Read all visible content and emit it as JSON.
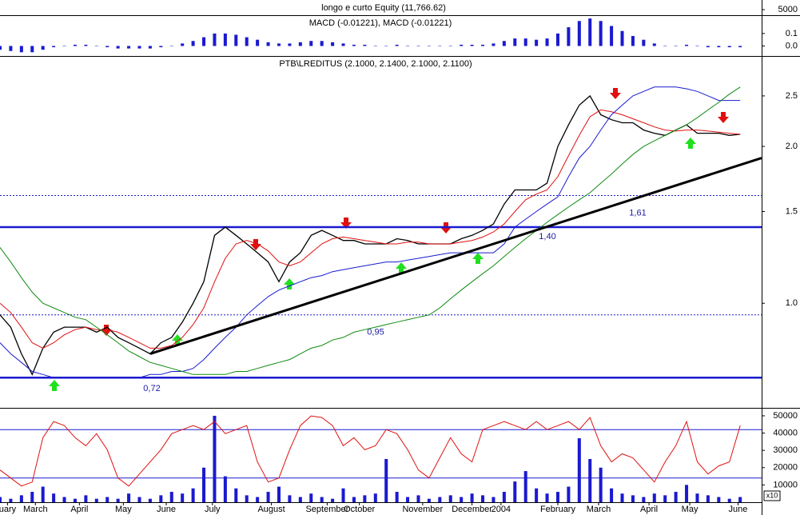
{
  "chart_data": [
    {
      "type": "equity",
      "title": "longo e curto Equity (11,766.62)",
      "ylim": [
        3000,
        7000
      ],
      "yticks": [
        5000
      ]
    },
    {
      "type": "bar",
      "title": "MACD (-0.01221), MACD (-0.01221)",
      "color": "#1a1ad0",
      "x": [
        0,
        1,
        2,
        3,
        4,
        5,
        6,
        7,
        8,
        9,
        10,
        11,
        12,
        13,
        14,
        15,
        16,
        17,
        18,
        19,
        20,
        21,
        22,
        23,
        24,
        25,
        26,
        27,
        28,
        29,
        30,
        31,
        32,
        33,
        34,
        35,
        36,
        37,
        38,
        39,
        40,
        41,
        42,
        43,
        44,
        45,
        46,
        47,
        48,
        49,
        50,
        51,
        52,
        53,
        54,
        55,
        56,
        57,
        58,
        59,
        60,
        61,
        62,
        63,
        64,
        65,
        66,
        67,
        68,
        69
      ],
      "values": [
        -0.03,
        -0.04,
        -0.05,
        -0.05,
        -0.03,
        -0.01,
        0,
        0.01,
        0.01,
        0,
        -0.01,
        -0.02,
        -0.02,
        -0.02,
        -0.02,
        -0.01,
        0,
        0.02,
        0.04,
        0.07,
        0.1,
        0.1,
        0.09,
        0.07,
        0.05,
        0.03,
        0.02,
        0.02,
        0.03,
        0.04,
        0.04,
        0.03,
        0.02,
        0.01,
        0.01,
        0,
        0,
        0.01,
        0,
        0,
        0,
        0,
        0,
        0.01,
        0.01,
        0.01,
        0.02,
        0.04,
        0.06,
        0.06,
        0.05,
        0.06,
        0.1,
        0.15,
        0.2,
        0.22,
        0.2,
        0.16,
        0.12,
        0.08,
        0.05,
        0.02,
        0,
        0,
        0.01,
        0,
        -0.01,
        -0.01,
        -0.01,
        -0.01
      ],
      "xlim": [
        0,
        71
      ],
      "ylim": [
        -0.08,
        0.24
      ],
      "yticks": [
        0.1,
        {
          "value": 0,
          "label": "0.0"
        }
      ]
    },
    {
      "type": "line",
      "title": "PTB\\LREDITUS (2.1000, 2.1400, 2.1000, 2.1100)",
      "log": true,
      "x": [
        0,
        1,
        2,
        3,
        4,
        5,
        6,
        7,
        8,
        9,
        10,
        11,
        12,
        13,
        14,
        15,
        16,
        17,
        18,
        19,
        20,
        21,
        22,
        23,
        24,
        25,
        26,
        27,
        28,
        29,
        30,
        31,
        32,
        33,
        34,
        35,
        36,
        37,
        38,
        39,
        40,
        41,
        42,
        43,
        44,
        45,
        46,
        47,
        48,
        49,
        50,
        51,
        52,
        53,
        54,
        55,
        56,
        57,
        58,
        59,
        60,
        61,
        62,
        63,
        64,
        65,
        66,
        67,
        68,
        69
      ],
      "series": [
        {
          "color": "#000000",
          "values": [
            0.95,
            0.9,
            0.8,
            0.73,
            0.82,
            0.88,
            0.9,
            0.9,
            0.9,
            0.88,
            0.9,
            0.86,
            0.84,
            0.82,
            0.8,
            0.84,
            0.86,
            0.92,
            1.0,
            1.1,
            1.35,
            1.4,
            1.35,
            1.3,
            1.25,
            1.2,
            1.1,
            1.2,
            1.25,
            1.35,
            1.38,
            1.35,
            1.32,
            1.32,
            1.3,
            1.3,
            1.3,
            1.33,
            1.32,
            1.3,
            1.3,
            1.3,
            1.3,
            1.33,
            1.35,
            1.38,
            1.42,
            1.55,
            1.65,
            1.65,
            1.65,
            1.7,
            2.0,
            2.2,
            2.4,
            2.5,
            2.3,
            2.25,
            2.22,
            2.22,
            2.15,
            2.12,
            2.1,
            2.15,
            2.2,
            2.12,
            2.12,
            2.12,
            2.1,
            2.11
          ]
        },
        {
          "color": "#e01010",
          "values": [
            1.0,
            0.96,
            0.9,
            0.84,
            0.82,
            0.84,
            0.87,
            0.89,
            0.9,
            0.89,
            0.89,
            0.88,
            0.86,
            0.84,
            0.82,
            0.82,
            0.83,
            0.86,
            0.91,
            0.98,
            1.1,
            1.22,
            1.3,
            1.32,
            1.3,
            1.26,
            1.2,
            1.18,
            1.2,
            1.25,
            1.3,
            1.33,
            1.34,
            1.33,
            1.32,
            1.31,
            1.3,
            1.3,
            1.31,
            1.31,
            1.3,
            1.3,
            1.3,
            1.31,
            1.32,
            1.34,
            1.37,
            1.42,
            1.5,
            1.58,
            1.62,
            1.65,
            1.75,
            1.92,
            2.1,
            2.28,
            2.35,
            2.33,
            2.3,
            2.26,
            2.22,
            2.18,
            2.15,
            2.14,
            2.15,
            2.15,
            2.14,
            2.13,
            2.12,
            2.11
          ]
        },
        {
          "color": "#1a1ad0",
          "values": [
            0.84,
            0.8,
            0.77,
            0.74,
            0.73,
            0.72,
            0.72,
            0.72,
            0.72,
            0.72,
            0.72,
            0.72,
            0.72,
            0.72,
            0.73,
            0.73,
            0.74,
            0.74,
            0.75,
            0.78,
            0.82,
            0.86,
            0.9,
            0.95,
            0.99,
            1.03,
            1.06,
            1.08,
            1.1,
            1.12,
            1.13,
            1.15,
            1.16,
            1.17,
            1.18,
            1.19,
            1.2,
            1.2,
            1.21,
            1.22,
            1.23,
            1.24,
            1.25,
            1.25,
            1.25,
            1.25,
            1.25,
            1.3,
            1.4,
            1.45,
            1.5,
            1.55,
            1.6,
            1.75,
            1.9,
            2.0,
            2.15,
            2.3,
            2.4,
            2.5,
            2.55,
            2.6,
            2.6,
            2.6,
            2.58,
            2.55,
            2.5,
            2.45,
            2.45,
            2.45
          ]
        },
        {
          "color": "#108a10",
          "values": [
            1.28,
            1.2,
            1.12,
            1.05,
            1.0,
            0.98,
            0.96,
            0.94,
            0.93,
            0.9,
            0.87,
            0.84,
            0.81,
            0.79,
            0.77,
            0.76,
            0.75,
            0.74,
            0.73,
            0.73,
            0.73,
            0.73,
            0.74,
            0.74,
            0.75,
            0.76,
            0.77,
            0.78,
            0.8,
            0.82,
            0.83,
            0.85,
            0.86,
            0.88,
            0.89,
            0.9,
            0.91,
            0.92,
            0.93,
            0.94,
            0.95,
            0.98,
            1.02,
            1.06,
            1.1,
            1.14,
            1.18,
            1.23,
            1.28,
            1.33,
            1.38,
            1.43,
            1.48,
            1.53,
            1.58,
            1.63,
            1.7,
            1.77,
            1.85,
            1.93,
            2.0,
            2.05,
            2.1,
            2.15,
            2.2,
            2.27,
            2.35,
            2.43,
            2.52,
            2.6
          ]
        }
      ],
      "trendline": {
        "x": [
          14,
          71
        ],
        "values": [
          0.8,
          1.9
        ]
      },
      "annotations": [
        {
          "label": "0,72",
          "value": 0.72
        },
        {
          "label": "0,95",
          "value": 0.95
        },
        {
          "label": "1,40",
          "value": 1.4
        },
        {
          "label": "1,61",
          "value": 1.61
        }
      ],
      "xlim": [
        0,
        71
      ],
      "ylim": [
        0.63,
        2.93
      ],
      "yticks": [
        2.5,
        {
          "value": 2,
          "label": "2.0"
        },
        1.5,
        {
          "value": 1,
          "label": "1.0"
        }
      ]
    },
    {
      "type": "bar",
      "color": "#1a1ad0",
      "unit_label": "x10",
      "x": [
        0,
        1,
        2,
        3,
        4,
        5,
        6,
        7,
        8,
        9,
        10,
        11,
        12,
        13,
        14,
        15,
        16,
        17,
        18,
        19,
        20,
        21,
        22,
        23,
        24,
        25,
        26,
        27,
        28,
        29,
        30,
        31,
        32,
        33,
        34,
        35,
        36,
        37,
        38,
        39,
        40,
        41,
        42,
        43,
        44,
        45,
        46,
        47,
        48,
        49,
        50,
        51,
        52,
        53,
        54,
        55,
        56,
        57,
        58,
        59,
        60,
        61,
        62,
        63,
        64,
        65,
        66,
        67,
        68,
        69
      ],
      "values": [
        3000,
        2000,
        4000,
        6000,
        9000,
        5000,
        3000,
        2000,
        4000,
        2000,
        3000,
        2000,
        5000,
        3000,
        2000,
        4000,
        6000,
        5000,
        8000,
        20000,
        50000,
        15000,
        8000,
        4000,
        3000,
        6000,
        9000,
        4000,
        3000,
        5000,
        3000,
        2000,
        8000,
        3000,
        4000,
        5000,
        25000,
        6000,
        3000,
        4000,
        2000,
        3000,
        4000,
        3000,
        5000,
        4000,
        3000,
        6000,
        12000,
        18000,
        8000,
        5000,
        6000,
        9000,
        37000,
        25000,
        20000,
        8000,
        5000,
        4000,
        3000,
        5000,
        4000,
        6000,
        10000,
        5000,
        4000,
        3000,
        2000,
        3000
      ],
      "series": [
        {
          "color": "#e01010",
          "axis": "y2",
          "values": [
            30,
            20,
            10,
            15,
            70,
            90,
            85,
            70,
            60,
            75,
            55,
            20,
            10,
            25,
            40,
            55,
            75,
            80,
            85,
            80,
            90,
            75,
            80,
            85,
            40,
            15,
            20,
            55,
            85,
            97,
            95,
            85,
            60,
            70,
            55,
            60,
            80,
            75,
            55,
            30,
            20,
            45,
            70,
            50,
            40,
            80,
            85,
            90,
            85,
            80,
            90,
            80,
            85,
            90,
            80,
            95,
            60,
            40,
            50,
            45,
            30,
            15,
            40,
            60,
            90,
            40,
            25,
            35,
            40,
            85
          ]
        }
      ],
      "levels": [
        80,
        20
      ],
      "xlim": [
        0,
        71
      ],
      "ylim": [
        0,
        54600
      ],
      "yticks": [
        50000,
        40000,
        30000,
        20000,
        10000
      ],
      "y2lim": [
        -10,
        107
      ],
      "xticks": [
        {
          "value": 0.7,
          "label": "uary"
        },
        {
          "value": 3.3,
          "label": "March"
        },
        {
          "value": 7.4,
          "label": "April"
        },
        {
          "value": 11.5,
          "label": "May"
        },
        {
          "value": 15.5,
          "label": "June"
        },
        {
          "value": 19.8,
          "label": "July"
        },
        {
          "value": 25.3,
          "label": "August"
        },
        {
          "value": 30.5,
          "label": "September"
        },
        {
          "value": 33.5,
          "label": "October"
        },
        {
          "value": 39.4,
          "label": "November"
        },
        {
          "value": 44,
          "label": "December"
        },
        {
          "value": 46.7,
          "label": "2004"
        },
        {
          "value": 52,
          "label": "February"
        },
        {
          "value": 55.8,
          "label": "March"
        },
        {
          "value": 60.5,
          "label": "April"
        },
        {
          "value": 64.3,
          "label": "May"
        },
        {
          "value": 68.8,
          "label": "June"
        }
      ]
    }
  ]
}
